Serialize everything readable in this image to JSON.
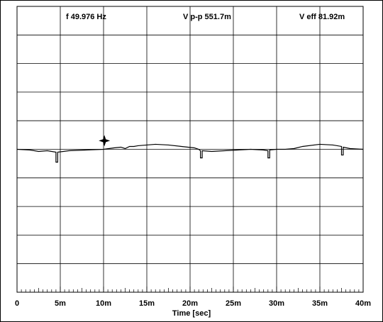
{
  "readouts": {
    "frequency": "f 49.976   Hz",
    "v_pp": "V p-p 551.7m",
    "v_eff": "V eff 81.92m"
  },
  "chart_data": {
    "type": "line",
    "xlabel": "Time [sec]",
    "ylabel": "",
    "x_tick_labels": [
      "0",
      "5m",
      "10m",
      "15m",
      "20m",
      "25m",
      "30m",
      "35m",
      "40m"
    ],
    "xlim": [
      0,
      0.04
    ],
    "ylim": [
      -1,
      1
    ],
    "x_divisions": 8,
    "y_divisions": 10,
    "grid": true,
    "trace_color": "#000000",
    "cursor_marker": {
      "x": 0.0101,
      "y": 0.06
    },
    "series": [
      {
        "x": [
          0,
          0.0015,
          0.0025,
          0.0035,
          0.0045,
          0.0045,
          0.0047,
          0.0047,
          0.006,
          0.008,
          0.01,
          0.0112,
          0.012,
          0.0125,
          0.013,
          0.0135,
          0.014,
          0.015,
          0.016,
          0.0175,
          0.019,
          0.0205,
          0.021,
          0.0212,
          0.0212,
          0.0214,
          0.0214,
          0.0225,
          0.024,
          0.0255,
          0.027,
          0.0285,
          0.029,
          0.029,
          0.0292,
          0.0292,
          0.03,
          0.031,
          0.032,
          0.033,
          0.035,
          0.0365,
          0.0375,
          0.0375,
          0.0377,
          0.0377,
          0.0385,
          0.04
        ],
        "y": [
          0,
          -0.005,
          -0.015,
          -0.01,
          -0.02,
          -0.09,
          -0.09,
          -0.02,
          -0.01,
          -0.005,
          0,
          0.01,
          0.015,
          0.005,
          0.02,
          0.02,
          0.025,
          0.03,
          0.035,
          0.03,
          0.02,
          0.01,
          0,
          -0.01,
          -0.06,
          -0.06,
          -0.01,
          -0.015,
          -0.01,
          -0.005,
          0,
          -0.005,
          -0.01,
          -0.06,
          -0.06,
          -0.005,
          0,
          0,
          0.005,
          0.02,
          0.035,
          0.03,
          0.02,
          -0.04,
          -0.04,
          0.015,
          0.005,
          0
        ]
      }
    ]
  }
}
